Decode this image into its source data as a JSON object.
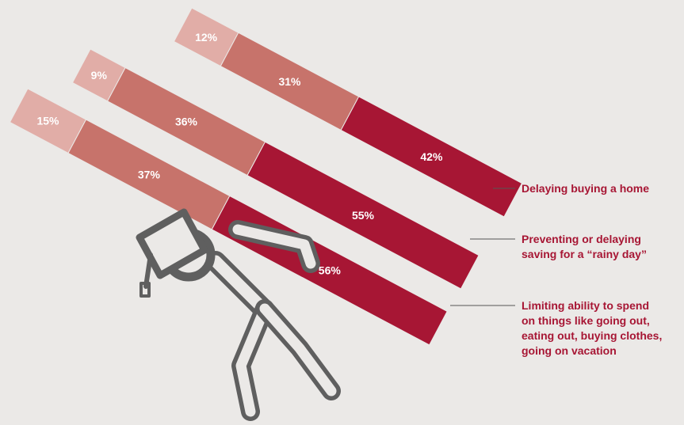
{
  "chart_data": {
    "type": "bar",
    "stacked": true,
    "orientation": "horizontal",
    "categories": [
      "Delaying buying a home",
      "Preventing or delaying saving for a “rainy day”",
      "Limiting ability to spend on things like going out, eating out, buying clothes, going on vacation"
    ],
    "category_lines": [
      [
        "Delaying buying a home"
      ],
      [
        "Preventing or delaying",
        "saving for a “rainy day”"
      ],
      [
        "Limiting ability to spend",
        "on things like going out,",
        "eating out, buying clothes,",
        "going on vacation"
      ]
    ],
    "series": [
      {
        "values": [
          12,
          9,
          15
        ]
      },
      {
        "values": [
          31,
          36,
          37
        ]
      },
      {
        "values": [
          42,
          55,
          56
        ]
      }
    ],
    "series_colors": [
      "#e1ada7",
      "#c7736b",
      "#a71634"
    ],
    "label_color": "#a71634",
    "figure_color": "#5f5f5f",
    "legend": "none",
    "grid": false
  }
}
